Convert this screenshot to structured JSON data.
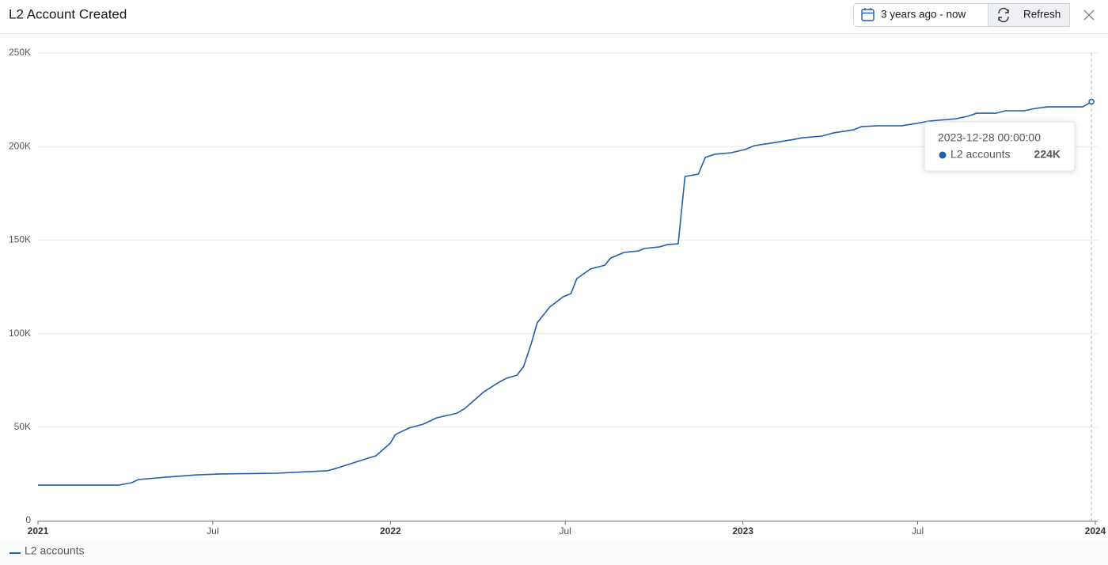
{
  "header": {
    "title": "L2 Account Created",
    "time_range": "3 years ago - now",
    "refresh": "Refresh"
  },
  "chart_data": {
    "type": "line",
    "x": [
      "2021-01-01",
      "2021-03-25",
      "2021-04-08",
      "2021-04-15",
      "2021-05-14",
      "2021-06-15",
      "2021-07-10",
      "2021-09-05",
      "2021-10-28",
      "2021-11-06",
      "2021-12-04",
      "2021-12-17",
      "2022-01-01",
      "2022-01-06",
      "2022-01-20",
      "2022-02-04",
      "2022-02-18",
      "2022-03-11",
      "2022-03-19",
      "2022-04-08",
      "2022-04-22",
      "2022-05-01",
      "2022-05-12",
      "2022-05-19",
      "2022-05-27",
      "2022-06-02",
      "2022-06-15",
      "2022-06-29",
      "2022-07-07",
      "2022-07-13",
      "2022-07-27",
      "2022-08-11",
      "2022-08-17",
      "2022-08-31",
      "2022-09-15",
      "2022-09-21",
      "2022-10-07",
      "2022-10-15",
      "2022-10-26",
      "2022-11-02",
      "2022-11-16",
      "2022-11-23",
      "2022-12-03",
      "2022-12-20",
      "2023-01-03",
      "2023-01-13",
      "2023-01-30",
      "2023-02-19",
      "2023-03-04",
      "2023-03-24",
      "2023-04-05",
      "2023-04-26",
      "2023-05-04",
      "2023-05-20",
      "2023-06-14",
      "2023-06-30",
      "2023-07-13",
      "2023-08-10",
      "2023-08-22",
      "2023-08-31",
      "2023-09-20",
      "2023-09-30",
      "2023-10-19",
      "2023-10-31",
      "2023-11-12",
      "2023-12-19",
      "2023-12-28"
    ],
    "series": [
      {
        "name": "L2 accounts",
        "color": "#1f5fad",
        "values": [
          19000,
          19000,
          20300,
          22000,
          23300,
          24500,
          25000,
          25400,
          26700,
          28000,
          32600,
          34700,
          41500,
          46000,
          49500,
          51600,
          55000,
          57500,
          60000,
          69000,
          73600,
          76100,
          77800,
          82500,
          95000,
          105800,
          114200,
          119700,
          121400,
          129400,
          134500,
          136600,
          140400,
          143400,
          144200,
          145500,
          146400,
          147600,
          148000,
          184000,
          185300,
          194200,
          195900,
          196700,
          198400,
          200500,
          201800,
          203500,
          204700,
          205600,
          207300,
          209000,
          210700,
          211100,
          211100,
          212400,
          213600,
          214900,
          216200,
          217800,
          217800,
          219100,
          219100,
          220400,
          221200,
          221200,
          224000
        ]
      }
    ],
    "xlim": [
      "2021-01-01",
      "2024-01-01"
    ],
    "xticks": [
      {
        "value": "2021-01-01",
        "label": "2021"
      },
      {
        "value": "2021-07-01",
        "label": "Jul"
      },
      {
        "value": "2022-01-01",
        "label": "2022"
      },
      {
        "value": "2022-07-01",
        "label": "Jul"
      },
      {
        "value": "2023-01-01",
        "label": "2023"
      },
      {
        "value": "2023-07-01",
        "label": "Jul"
      },
      {
        "value": "2024-01-01",
        "label": "2024"
      }
    ],
    "ylim": [
      0,
      250000
    ],
    "yticks": [
      0,
      {
        "value": 50000,
        "label": "50K"
      },
      {
        "value": 100000,
        "label": "100K"
      },
      {
        "value": 150000,
        "label": "150K"
      },
      {
        "value": 200000,
        "label": "200K"
      },
      {
        "value": 250000,
        "label": "250K"
      }
    ],
    "grid": true,
    "tooltip": {
      "x": "2023-12-28 00:00:00",
      "value": 224000,
      "value_label": "224K"
    }
  }
}
